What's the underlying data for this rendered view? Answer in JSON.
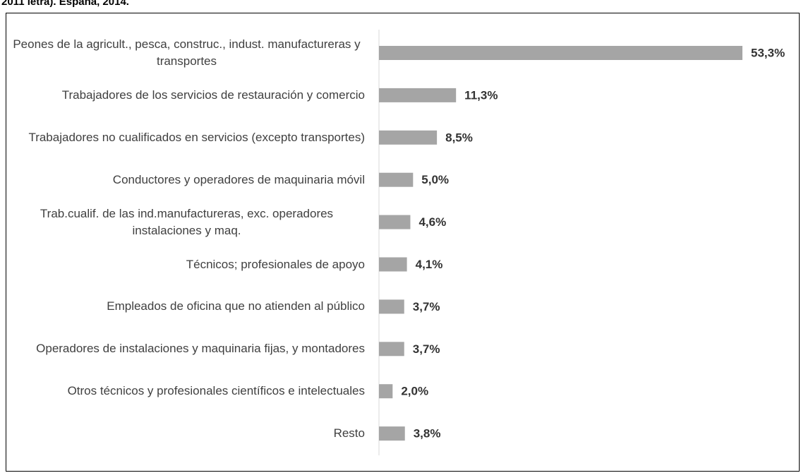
{
  "chart_data": {
    "type": "bar",
    "orientation": "horizontal",
    "title": "2011 letra). España, 2014.",
    "categories": [
      "Peones de la agricult., pesca, construc., indust. manufactureras y transportes",
      "Trabajadores de los servicios de restauración y comercio",
      "Trabajadores no cualificados en servicios (excepto transportes)",
      "Conductores y operadores de maquinaria móvil",
      "Trab.cualif. de las ind.manufactureras, exc. operadores instalaciones y maq.",
      "Técnicos; profesionales de apoyo",
      "Empleados de oficina que no atienden al público",
      "Operadores de instalaciones y maquinaria fijas, y montadores",
      "Otros técnicos y profesionales científicos e intelectuales",
      "Resto"
    ],
    "values": [
      53.3,
      11.3,
      8.5,
      5.0,
      4.6,
      4.1,
      3.7,
      3.7,
      2.0,
      3.8
    ],
    "value_labels": [
      "53,3%",
      "11,3%",
      "8,5%",
      "5,0%",
      "4,6%",
      "4,1%",
      "3,7%",
      "3,7%",
      "2,0%",
      "3,8%"
    ],
    "color": "#a5a5a5"
  }
}
